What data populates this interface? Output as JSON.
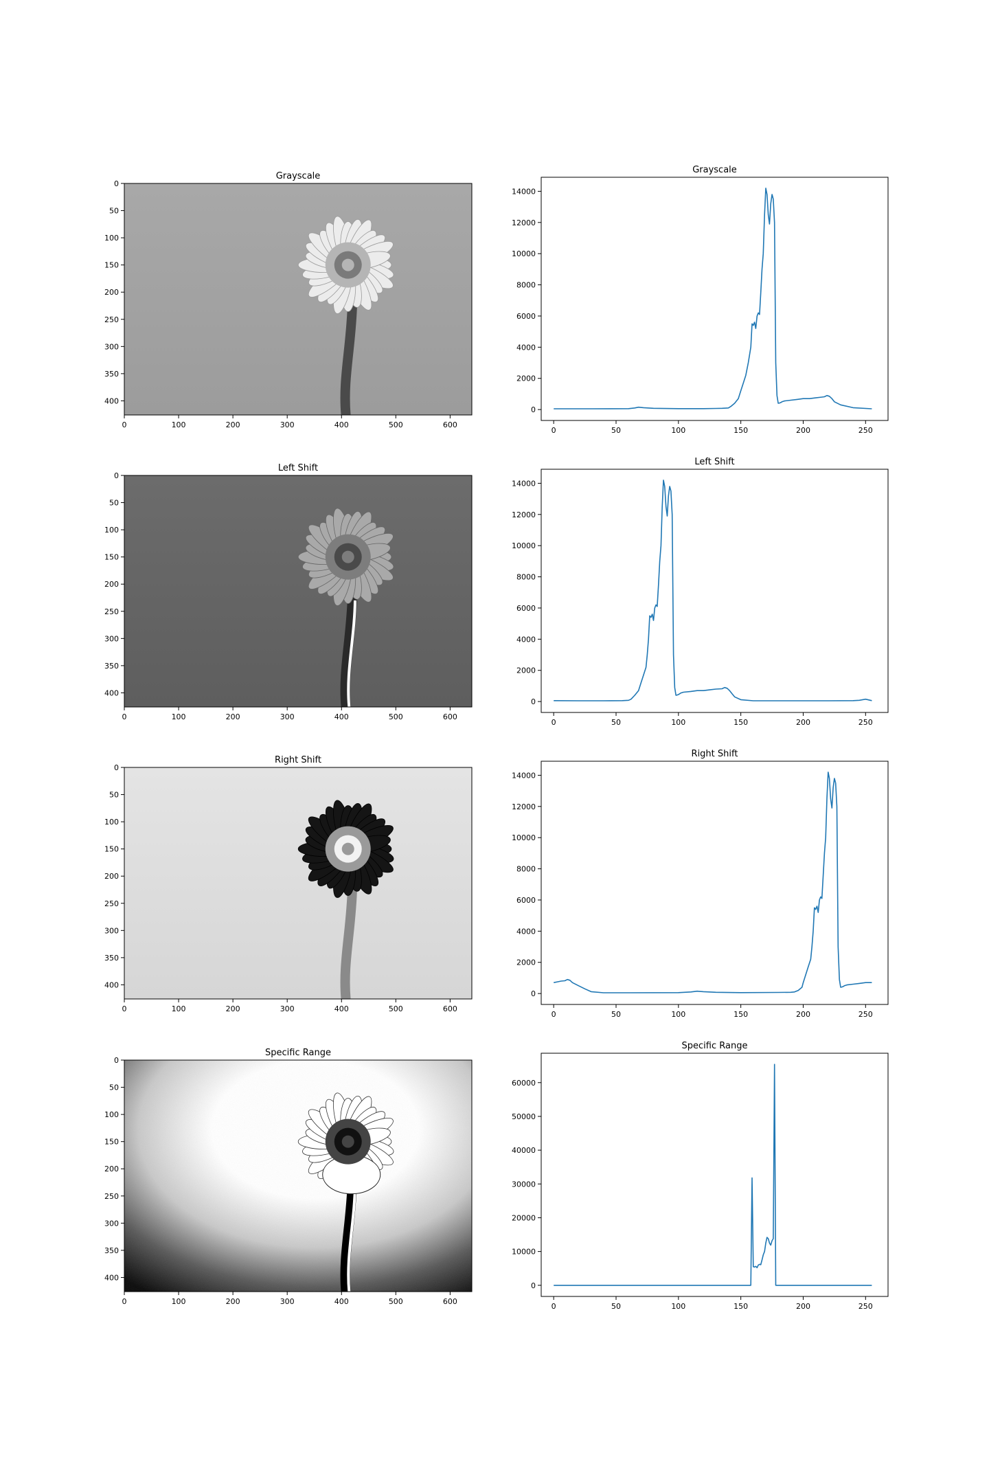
{
  "chart_data": [
    {
      "type": "image",
      "title": "Grayscale",
      "xticks": [
        0,
        100,
        200,
        300,
        400,
        500,
        600
      ],
      "yticks": [
        0,
        50,
        100,
        150,
        200,
        250,
        300,
        350,
        400
      ],
      "xlim": [
        0,
        640
      ],
      "ylim": [
        426,
        0
      ],
      "variant": "grayscale"
    },
    {
      "type": "line",
      "title": "Grayscale",
      "xlim": [
        -10,
        268
      ],
      "ylim": [
        -700,
        14900
      ],
      "xticks": [
        0,
        50,
        100,
        150,
        200,
        250
      ],
      "yticks": [
        0,
        2000,
        4000,
        6000,
        8000,
        10000,
        12000,
        14000
      ],
      "color": "#1f77b4",
      "x": [
        0,
        30,
        60,
        65,
        68,
        72,
        80,
        100,
        120,
        130,
        135,
        140,
        142,
        145,
        148,
        150,
        152,
        154,
        156,
        158,
        159,
        160,
        161,
        162,
        163,
        164,
        165,
        166,
        167,
        168,
        169,
        170,
        171,
        172,
        173,
        174,
        175,
        176,
        177,
        178,
        179,
        180,
        181,
        182,
        183,
        185,
        190,
        195,
        200,
        205,
        210,
        215,
        217,
        219,
        221,
        223,
        225,
        230,
        240,
        255
      ],
      "y": [
        50,
        50,
        60,
        100,
        150,
        120,
        80,
        60,
        60,
        70,
        80,
        100,
        200,
        400,
        700,
        1200,
        1700,
        2200,
        3000,
        4000,
        5500,
        5400,
        5600,
        5200,
        6000,
        6200,
        6100,
        7500,
        9000,
        10000,
        12500,
        14200,
        13800,
        12500,
        11900,
        13200,
        13800,
        13500,
        12000,
        3000,
        900,
        400,
        420,
        450,
        500,
        550,
        600,
        650,
        700,
        700,
        750,
        800,
        820,
        900,
        850,
        700,
        500,
        300,
        120,
        50
      ]
    },
    {
      "type": "image",
      "title": "Left Shift",
      "xticks": [
        0,
        100,
        200,
        300,
        400,
        500,
        600
      ],
      "yticks": [
        0,
        50,
        100,
        150,
        200,
        250,
        300,
        350,
        400
      ],
      "xlim": [
        0,
        640
      ],
      "ylim": [
        426,
        0
      ],
      "variant": "leftshift"
    },
    {
      "type": "line",
      "title": "Left Shift",
      "xlim": [
        -10,
        268
      ],
      "ylim": [
        -700,
        14900
      ],
      "xticks": [
        0,
        50,
        100,
        150,
        200,
        250
      ],
      "yticks": [
        0,
        2000,
        4000,
        6000,
        8000,
        10000,
        12000,
        14000
      ],
      "color": "#1f77b4",
      "x": [
        0,
        20,
        40,
        55,
        60,
        62,
        65,
        68,
        70,
        72,
        74,
        75,
        76,
        77,
        78,
        79,
        80,
        81,
        82,
        83,
        84,
        85,
        86,
        87,
        88,
        89,
        90,
        91,
        92,
        93,
        94,
        95,
        96,
        97,
        98,
        99,
        100,
        101,
        102,
        104,
        110,
        115,
        120,
        125,
        130,
        135,
        137,
        139,
        141,
        143,
        145,
        150,
        160,
        180,
        200,
        220,
        240,
        245,
        250,
        255
      ],
      "y": [
        60,
        50,
        50,
        60,
        80,
        150,
        400,
        700,
        1200,
        1700,
        2200,
        3000,
        4000,
        5500,
        5400,
        5600,
        5200,
        6000,
        6200,
        6100,
        7500,
        9000,
        10000,
        12500,
        14200,
        13800,
        12500,
        11900,
        13200,
        13800,
        13500,
        12000,
        3000,
        900,
        400,
        420,
        450,
        500,
        550,
        600,
        650,
        700,
        700,
        750,
        800,
        820,
        900,
        850,
        700,
        500,
        300,
        120,
        50,
        50,
        50,
        50,
        60,
        80,
        150,
        60
      ]
    },
    {
      "type": "image",
      "title": "Right Shift",
      "xticks": [
        0,
        100,
        200,
        300,
        400,
        500,
        600
      ],
      "yticks": [
        0,
        50,
        100,
        150,
        200,
        250,
        300,
        350,
        400
      ],
      "xlim": [
        0,
        640
      ],
      "ylim": [
        426,
        0
      ],
      "variant": "rightshift"
    },
    {
      "type": "line",
      "title": "Right Shift",
      "xlim": [
        -10,
        268
      ],
      "ylim": [
        -700,
        14900
      ],
      "xticks": [
        0,
        50,
        100,
        150,
        200,
        250
      ],
      "yticks": [
        0,
        2000,
        4000,
        6000,
        8000,
        10000,
        12000,
        14000
      ],
      "color": "#1f77b4",
      "x": [
        0,
        3,
        6,
        9,
        11,
        13,
        15,
        20,
        25,
        30,
        40,
        60,
        100,
        110,
        115,
        120,
        130,
        150,
        180,
        190,
        193,
        196,
        199,
        200,
        202,
        204,
        206,
        207,
        208,
        209,
        210,
        211,
        212,
        213,
        214,
        215,
        216,
        217,
        218,
        219,
        220,
        221,
        222,
        223,
        224,
        225,
        226,
        227,
        228,
        229,
        230,
        231,
        232,
        233,
        235,
        240,
        245,
        250,
        255
      ],
      "y": [
        700,
        750,
        800,
        820,
        900,
        850,
        700,
        500,
        300,
        120,
        50,
        50,
        60,
        100,
        150,
        120,
        80,
        60,
        70,
        80,
        100,
        200,
        400,
        700,
        1200,
        1700,
        2200,
        3000,
        4000,
        5500,
        5400,
        5600,
        5200,
        6000,
        6200,
        6100,
        7500,
        9000,
        10000,
        12500,
        14200,
        13800,
        12500,
        11900,
        13200,
        13800,
        13500,
        12000,
        3000,
        900,
        400,
        420,
        450,
        500,
        550,
        600,
        650,
        700,
        700
      ]
    },
    {
      "type": "image",
      "title": "Specific Range",
      "xticks": [
        0,
        100,
        200,
        300,
        400,
        500,
        600
      ],
      "yticks": [
        0,
        50,
        100,
        150,
        200,
        250,
        300,
        350,
        400
      ],
      "xlim": [
        0,
        640
      ],
      "ylim": [
        426,
        0
      ],
      "variant": "specific"
    },
    {
      "type": "line",
      "title": "Specific Range",
      "xlim": [
        -10,
        268
      ],
      "ylim": [
        -3300,
        68700
      ],
      "xticks": [
        0,
        50,
        100,
        150,
        200,
        250
      ],
      "yticks": [
        0,
        10000,
        20000,
        30000,
        40000,
        50000,
        60000
      ],
      "color": "#1f77b4",
      "x": [
        0,
        100,
        158,
        159,
        160,
        161,
        162,
        163,
        164,
        165,
        166,
        167,
        168,
        169,
        170,
        171,
        172,
        173,
        174,
        175,
        176,
        177,
        178,
        179,
        180,
        181,
        182,
        200,
        255
      ],
      "y": [
        0,
        0,
        0,
        31800,
        5500,
        5400,
        5600,
        5200,
        6000,
        6200,
        6100,
        7500,
        9000,
        10000,
        12500,
        14200,
        13800,
        12500,
        11900,
        13200,
        13800,
        65400,
        0,
        0,
        0,
        0,
        0,
        0,
        0
      ]
    }
  ]
}
